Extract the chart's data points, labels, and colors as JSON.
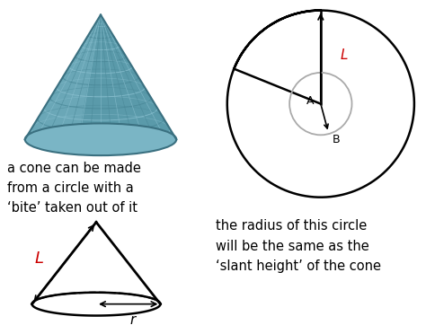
{
  "bg_color": "#ffffff",
  "text_color": "#000000",
  "red_color": "#cc0000",
  "text1": "a cone can be made\nfrom a circle with a\n‘bite’ taken out of it",
  "text2": "the radius of this circle\nwill be the same as the\n‘slant height’ of the cone",
  "label_L": "L",
  "label_r": "r",
  "label_A": "A",
  "label_B": "B",
  "fig_width": 4.74,
  "fig_height": 3.72,
  "dpi": 100,
  "cone3d_color_light": "#7ab5c5",
  "cone3d_color_mid": "#5a9aaa",
  "cone3d_color_dark": "#3a7080",
  "cone3d_checker_light": "#88bece",
  "cone3d_checker_dark": "#4a8898"
}
